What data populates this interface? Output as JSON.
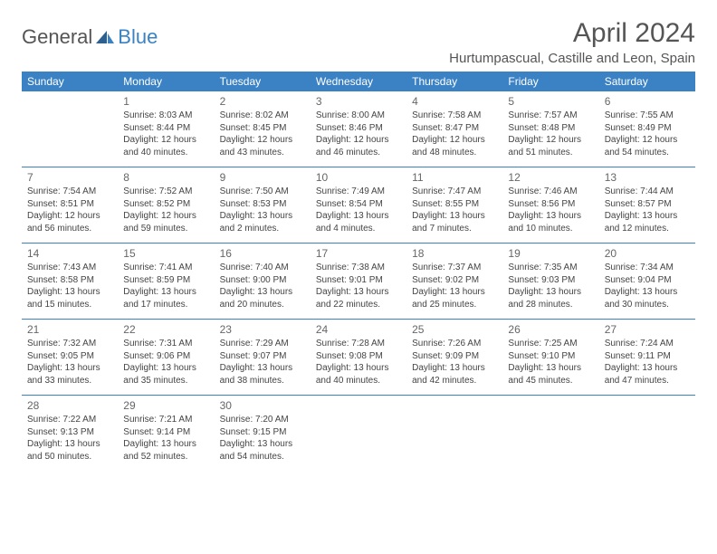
{
  "header": {
    "logo_general": "General",
    "logo_blue": "Blue",
    "month_title": "April 2024",
    "location": "Hurtumpascual, Castille and Leon, Spain"
  },
  "colors": {
    "header_bg": "#3b82c4",
    "header_text": "#ffffff",
    "cell_border": "#3b82c4",
    "body_text": "#444",
    "daynum_text": "#666"
  },
  "weekdays": [
    "Sunday",
    "Monday",
    "Tuesday",
    "Wednesday",
    "Thursday",
    "Friday",
    "Saturday"
  ],
  "weeks": [
    [
      null,
      {
        "n": "1",
        "sr": "Sunrise: 8:03 AM",
        "ss": "Sunset: 8:44 PM",
        "dl1": "Daylight: 12 hours",
        "dl2": "and 40 minutes."
      },
      {
        "n": "2",
        "sr": "Sunrise: 8:02 AM",
        "ss": "Sunset: 8:45 PM",
        "dl1": "Daylight: 12 hours",
        "dl2": "and 43 minutes."
      },
      {
        "n": "3",
        "sr": "Sunrise: 8:00 AM",
        "ss": "Sunset: 8:46 PM",
        "dl1": "Daylight: 12 hours",
        "dl2": "and 46 minutes."
      },
      {
        "n": "4",
        "sr": "Sunrise: 7:58 AM",
        "ss": "Sunset: 8:47 PM",
        "dl1": "Daylight: 12 hours",
        "dl2": "and 48 minutes."
      },
      {
        "n": "5",
        "sr": "Sunrise: 7:57 AM",
        "ss": "Sunset: 8:48 PM",
        "dl1": "Daylight: 12 hours",
        "dl2": "and 51 minutes."
      },
      {
        "n": "6",
        "sr": "Sunrise: 7:55 AM",
        "ss": "Sunset: 8:49 PM",
        "dl1": "Daylight: 12 hours",
        "dl2": "and 54 minutes."
      }
    ],
    [
      {
        "n": "7",
        "sr": "Sunrise: 7:54 AM",
        "ss": "Sunset: 8:51 PM",
        "dl1": "Daylight: 12 hours",
        "dl2": "and 56 minutes."
      },
      {
        "n": "8",
        "sr": "Sunrise: 7:52 AM",
        "ss": "Sunset: 8:52 PM",
        "dl1": "Daylight: 12 hours",
        "dl2": "and 59 minutes."
      },
      {
        "n": "9",
        "sr": "Sunrise: 7:50 AM",
        "ss": "Sunset: 8:53 PM",
        "dl1": "Daylight: 13 hours",
        "dl2": "and 2 minutes."
      },
      {
        "n": "10",
        "sr": "Sunrise: 7:49 AM",
        "ss": "Sunset: 8:54 PM",
        "dl1": "Daylight: 13 hours",
        "dl2": "and 4 minutes."
      },
      {
        "n": "11",
        "sr": "Sunrise: 7:47 AM",
        "ss": "Sunset: 8:55 PM",
        "dl1": "Daylight: 13 hours",
        "dl2": "and 7 minutes."
      },
      {
        "n": "12",
        "sr": "Sunrise: 7:46 AM",
        "ss": "Sunset: 8:56 PM",
        "dl1": "Daylight: 13 hours",
        "dl2": "and 10 minutes."
      },
      {
        "n": "13",
        "sr": "Sunrise: 7:44 AM",
        "ss": "Sunset: 8:57 PM",
        "dl1": "Daylight: 13 hours",
        "dl2": "and 12 minutes."
      }
    ],
    [
      {
        "n": "14",
        "sr": "Sunrise: 7:43 AM",
        "ss": "Sunset: 8:58 PM",
        "dl1": "Daylight: 13 hours",
        "dl2": "and 15 minutes."
      },
      {
        "n": "15",
        "sr": "Sunrise: 7:41 AM",
        "ss": "Sunset: 8:59 PM",
        "dl1": "Daylight: 13 hours",
        "dl2": "and 17 minutes."
      },
      {
        "n": "16",
        "sr": "Sunrise: 7:40 AM",
        "ss": "Sunset: 9:00 PM",
        "dl1": "Daylight: 13 hours",
        "dl2": "and 20 minutes."
      },
      {
        "n": "17",
        "sr": "Sunrise: 7:38 AM",
        "ss": "Sunset: 9:01 PM",
        "dl1": "Daylight: 13 hours",
        "dl2": "and 22 minutes."
      },
      {
        "n": "18",
        "sr": "Sunrise: 7:37 AM",
        "ss": "Sunset: 9:02 PM",
        "dl1": "Daylight: 13 hours",
        "dl2": "and 25 minutes."
      },
      {
        "n": "19",
        "sr": "Sunrise: 7:35 AM",
        "ss": "Sunset: 9:03 PM",
        "dl1": "Daylight: 13 hours",
        "dl2": "and 28 minutes."
      },
      {
        "n": "20",
        "sr": "Sunrise: 7:34 AM",
        "ss": "Sunset: 9:04 PM",
        "dl1": "Daylight: 13 hours",
        "dl2": "and 30 minutes."
      }
    ],
    [
      {
        "n": "21",
        "sr": "Sunrise: 7:32 AM",
        "ss": "Sunset: 9:05 PM",
        "dl1": "Daylight: 13 hours",
        "dl2": "and 33 minutes."
      },
      {
        "n": "22",
        "sr": "Sunrise: 7:31 AM",
        "ss": "Sunset: 9:06 PM",
        "dl1": "Daylight: 13 hours",
        "dl2": "and 35 minutes."
      },
      {
        "n": "23",
        "sr": "Sunrise: 7:29 AM",
        "ss": "Sunset: 9:07 PM",
        "dl1": "Daylight: 13 hours",
        "dl2": "and 38 minutes."
      },
      {
        "n": "24",
        "sr": "Sunrise: 7:28 AM",
        "ss": "Sunset: 9:08 PM",
        "dl1": "Daylight: 13 hours",
        "dl2": "and 40 minutes."
      },
      {
        "n": "25",
        "sr": "Sunrise: 7:26 AM",
        "ss": "Sunset: 9:09 PM",
        "dl1": "Daylight: 13 hours",
        "dl2": "and 42 minutes."
      },
      {
        "n": "26",
        "sr": "Sunrise: 7:25 AM",
        "ss": "Sunset: 9:10 PM",
        "dl1": "Daylight: 13 hours",
        "dl2": "and 45 minutes."
      },
      {
        "n": "27",
        "sr": "Sunrise: 7:24 AM",
        "ss": "Sunset: 9:11 PM",
        "dl1": "Daylight: 13 hours",
        "dl2": "and 47 minutes."
      }
    ],
    [
      {
        "n": "28",
        "sr": "Sunrise: 7:22 AM",
        "ss": "Sunset: 9:13 PM",
        "dl1": "Daylight: 13 hours",
        "dl2": "and 50 minutes."
      },
      {
        "n": "29",
        "sr": "Sunrise: 7:21 AM",
        "ss": "Sunset: 9:14 PM",
        "dl1": "Daylight: 13 hours",
        "dl2": "and 52 minutes."
      },
      {
        "n": "30",
        "sr": "Sunrise: 7:20 AM",
        "ss": "Sunset: 9:15 PM",
        "dl1": "Daylight: 13 hours",
        "dl2": "and 54 minutes."
      },
      null,
      null,
      null,
      null
    ]
  ]
}
